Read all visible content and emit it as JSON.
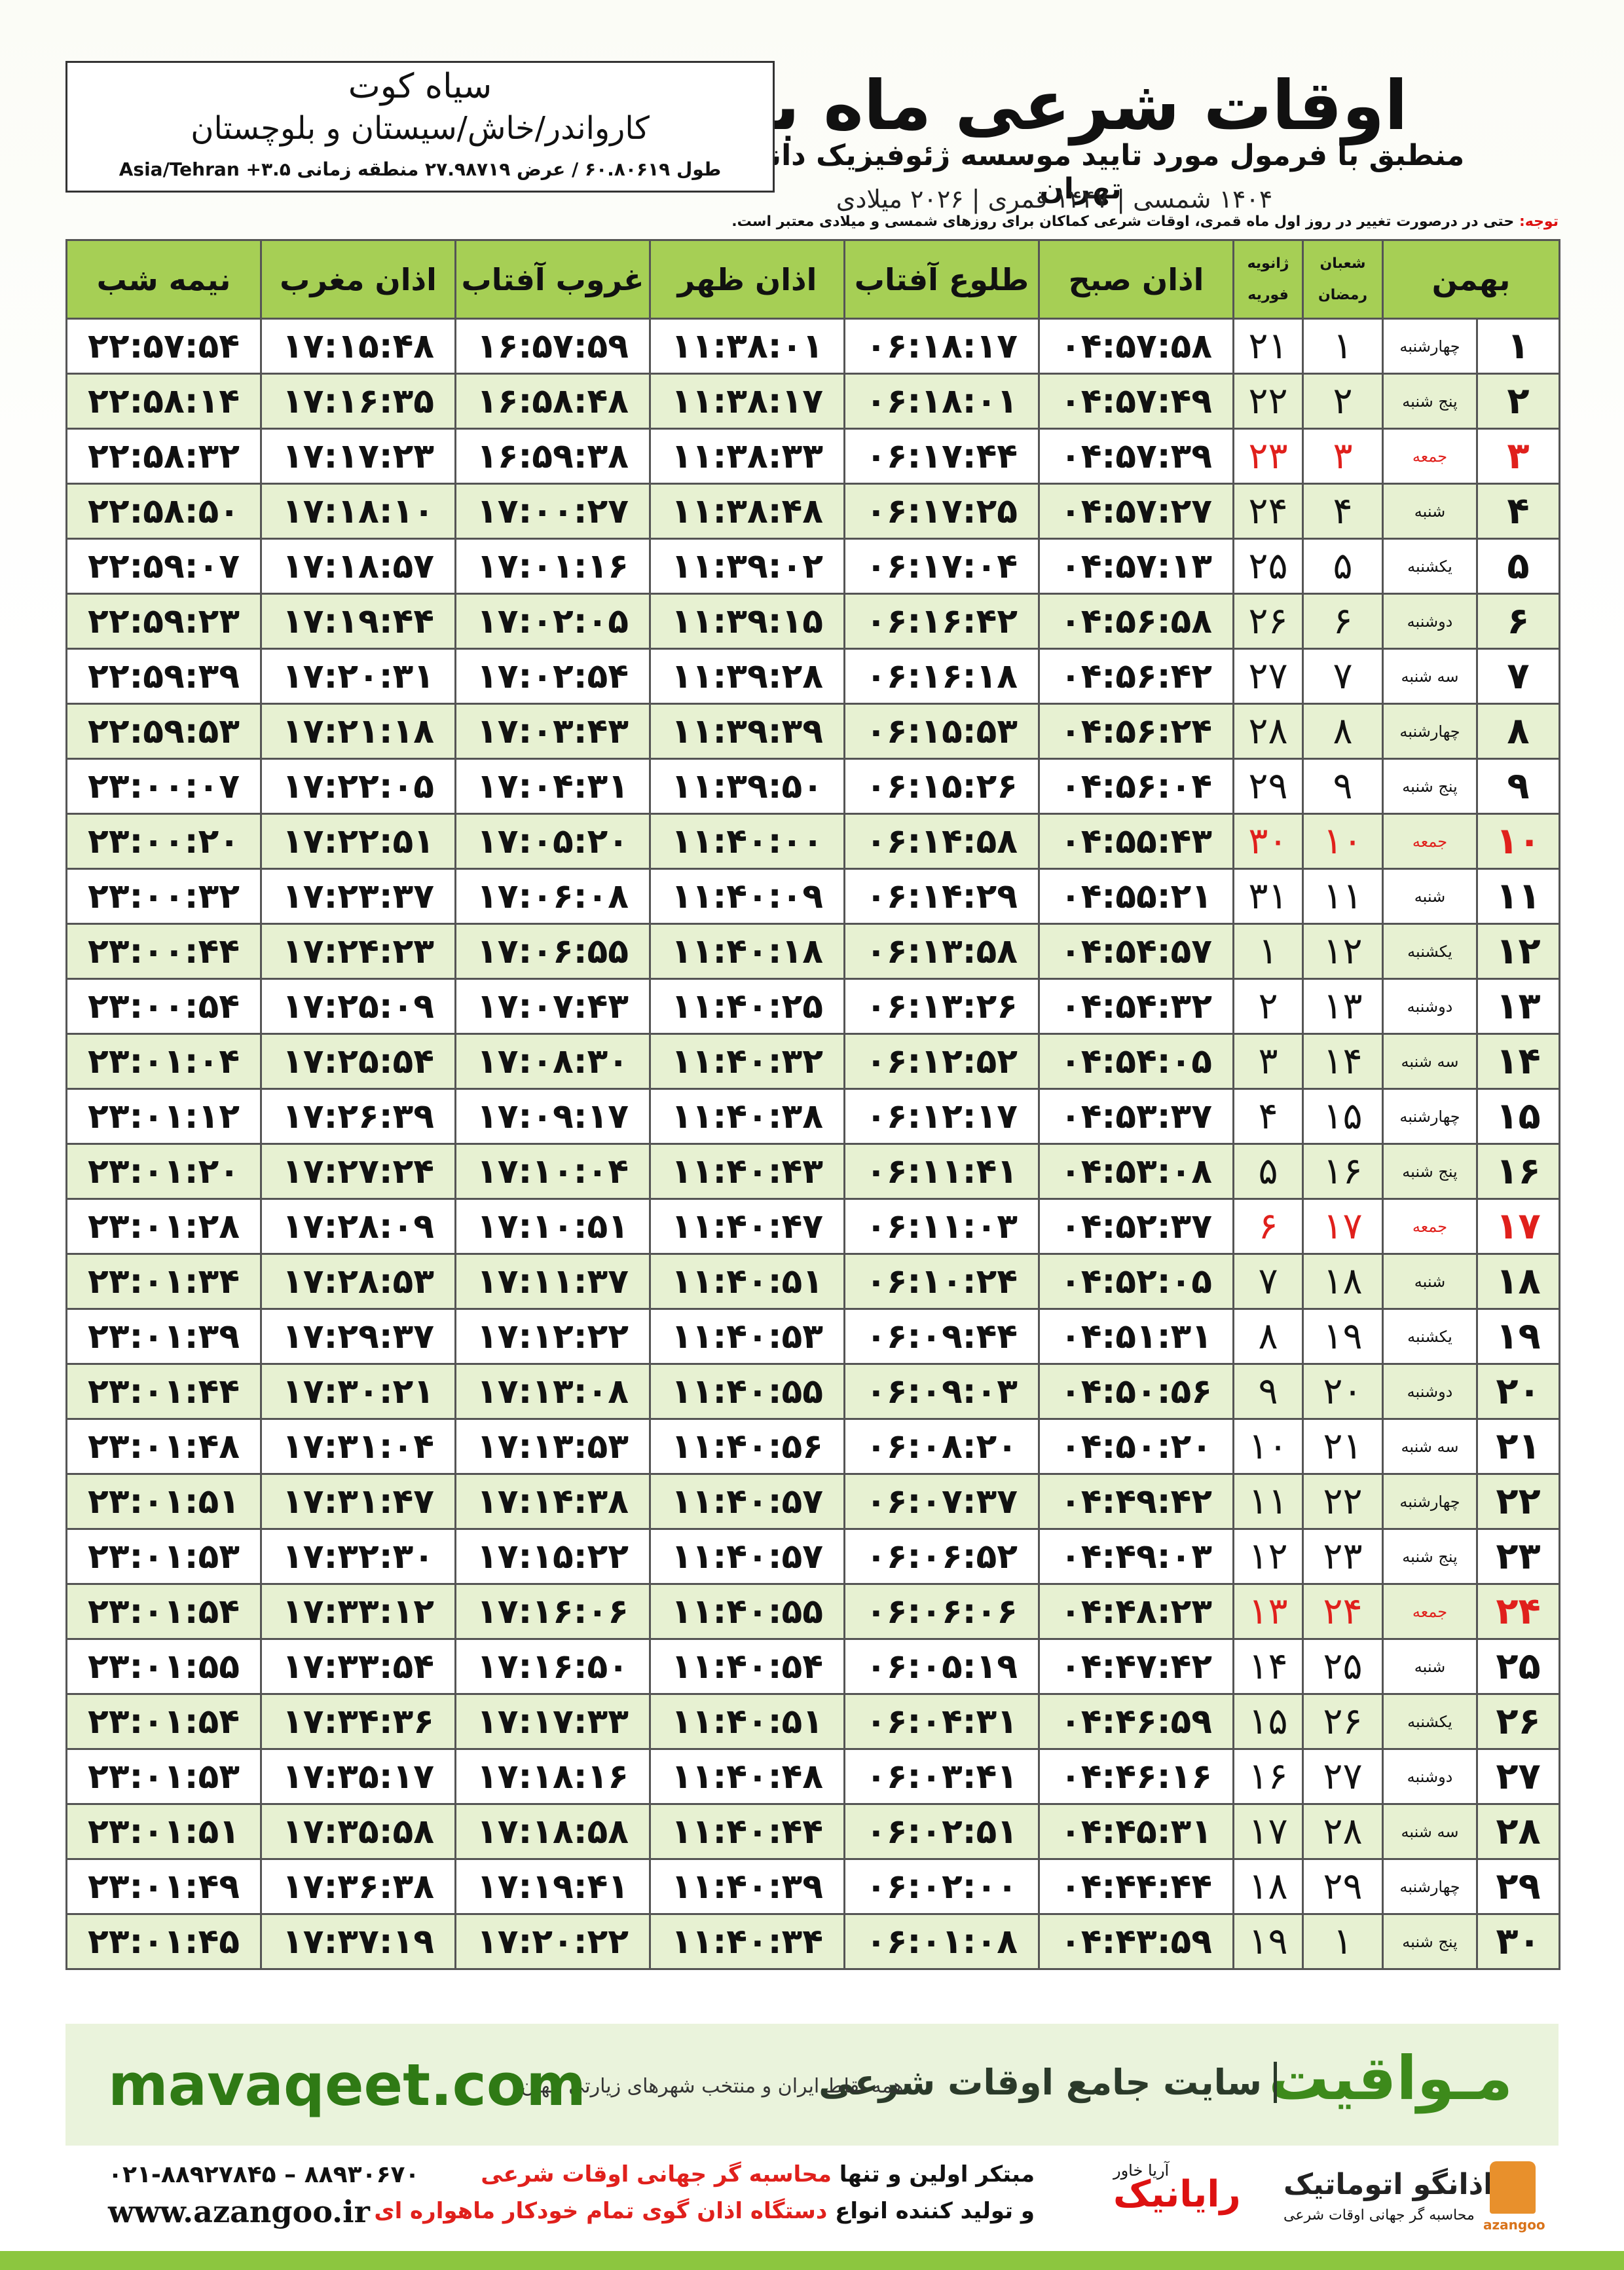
{
  "header": {
    "title": "اوقات شرعی ماه بهمن",
    "subtitle": "منطبق با فرمول مورد تایید موسسه ژئوفیزیک دانشگاه تهران",
    "dates": "۱۴۰۴ شمسی | ۱۴۴۷ قمری | ۲۰۲۶ میلادی"
  },
  "location": {
    "city": "سیاه کوت",
    "region": "کارواندر/خاش/سیستان و بلوچستان",
    "coords": "طول ۶۰.۸۰۶۱۹ / عرض ۲۷.۹۸۷۱۹ منطقه زمانی ۳.۵+ Asia/Tehran"
  },
  "note": {
    "label": "توجه:",
    "text": "حتی در درصورت تغییر در روز اول ماه قمری، اوقات شرعی کماکان برای روزهای شمسی و میلادی معتبر است."
  },
  "table": {
    "headers": {
      "month": "بهمن",
      "hijri": [
        "شعبان",
        "رمضان"
      ],
      "gregorian": [
        "ژانویه",
        "فوریه"
      ],
      "times": [
        "اذان صبح",
        "طلوع آفتاب",
        "اذان ظهر",
        "غروب آفتاب",
        "اذان مغرب",
        "نیمه شب"
      ]
    },
    "rows": [
      [
        "۱",
        "چهارشنبه",
        "۱",
        "۲۱",
        "۰۴:۵۷:۵۸",
        "۰۶:۱۸:۱۷",
        "۱۱:۳۸:۰۱",
        "۱۶:۵۷:۵۹",
        "۱۷:۱۵:۴۸",
        "۲۲:۵۷:۵۴"
      ],
      [
        "۲",
        "پنج شنبه",
        "۲",
        "۲۲",
        "۰۴:۵۷:۴۹",
        "۰۶:۱۸:۰۱",
        "۱۱:۳۸:۱۷",
        "۱۶:۵۸:۴۸",
        "۱۷:۱۶:۳۵",
        "۲۲:۵۸:۱۴"
      ],
      [
        "۳",
        "جمعه",
        "۳",
        "۲۳",
        "۰۴:۵۷:۳۹",
        "۰۶:۱۷:۴۴",
        "۱۱:۳۸:۳۳",
        "۱۶:۵۹:۳۸",
        "۱۷:۱۷:۲۳",
        "۲۲:۵۸:۳۲"
      ],
      [
        "۴",
        "شنبه",
        "۴",
        "۲۴",
        "۰۴:۵۷:۲۷",
        "۰۶:۱۷:۲۵",
        "۱۱:۳۸:۴۸",
        "۱۷:۰۰:۲۷",
        "۱۷:۱۸:۱۰",
        "۲۲:۵۸:۵۰"
      ],
      [
        "۵",
        "یکشنبه",
        "۵",
        "۲۵",
        "۰۴:۵۷:۱۳",
        "۰۶:۱۷:۰۴",
        "۱۱:۳۹:۰۲",
        "۱۷:۰۱:۱۶",
        "۱۷:۱۸:۵۷",
        "۲۲:۵۹:۰۷"
      ],
      [
        "۶",
        "دوشنبه",
        "۶",
        "۲۶",
        "۰۴:۵۶:۵۸",
        "۰۶:۱۶:۴۲",
        "۱۱:۳۹:۱۵",
        "۱۷:۰۲:۰۵",
        "۱۷:۱۹:۴۴",
        "۲۲:۵۹:۲۳"
      ],
      [
        "۷",
        "سه شنبه",
        "۷",
        "۲۷",
        "۰۴:۵۶:۴۲",
        "۰۶:۱۶:۱۸",
        "۱۱:۳۹:۲۸",
        "۱۷:۰۲:۵۴",
        "۱۷:۲۰:۳۱",
        "۲۲:۵۹:۳۹"
      ],
      [
        "۸",
        "چهارشنبه",
        "۸",
        "۲۸",
        "۰۴:۵۶:۲۴",
        "۰۶:۱۵:۵۳",
        "۱۱:۳۹:۳۹",
        "۱۷:۰۳:۴۳",
        "۱۷:۲۱:۱۸",
        "۲۲:۵۹:۵۳"
      ],
      [
        "۹",
        "پنج شنبه",
        "۹",
        "۲۹",
        "۰۴:۵۶:۰۴",
        "۰۶:۱۵:۲۶",
        "۱۱:۳۹:۵۰",
        "۱۷:۰۴:۳۱",
        "۱۷:۲۲:۰۵",
        "۲۳:۰۰:۰۷"
      ],
      [
        "۱۰",
        "جمعه",
        "۱۰",
        "۳۰",
        "۰۴:۵۵:۴۳",
        "۰۶:۱۴:۵۸",
        "۱۱:۴۰:۰۰",
        "۱۷:۰۵:۲۰",
        "۱۷:۲۲:۵۱",
        "۲۳:۰۰:۲۰"
      ],
      [
        "۱۱",
        "شنبه",
        "۱۱",
        "۳۱",
        "۰۴:۵۵:۲۱",
        "۰۶:۱۴:۲۹",
        "۱۱:۴۰:۰۹",
        "۱۷:۰۶:۰۸",
        "۱۷:۲۳:۳۷",
        "۲۳:۰۰:۳۲"
      ],
      [
        "۱۲",
        "یکشنبه",
        "۱۲",
        "۱",
        "۰۴:۵۴:۵۷",
        "۰۶:۱۳:۵۸",
        "۱۱:۴۰:۱۸",
        "۱۷:۰۶:۵۵",
        "۱۷:۲۴:۲۳",
        "۲۳:۰۰:۴۴"
      ],
      [
        "۱۳",
        "دوشنبه",
        "۱۳",
        "۲",
        "۰۴:۵۴:۳۲",
        "۰۶:۱۳:۲۶",
        "۱۱:۴۰:۲۵",
        "۱۷:۰۷:۴۳",
        "۱۷:۲۵:۰۹",
        "۲۳:۰۰:۵۴"
      ],
      [
        "۱۴",
        "سه شنبه",
        "۱۴",
        "۳",
        "۰۴:۵۴:۰۵",
        "۰۶:۱۲:۵۲",
        "۱۱:۴۰:۳۲",
        "۱۷:۰۸:۳۰",
        "۱۷:۲۵:۵۴",
        "۲۳:۰۱:۰۴"
      ],
      [
        "۱۵",
        "چهارشنبه",
        "۱۵",
        "۴",
        "۰۴:۵۳:۳۷",
        "۰۶:۱۲:۱۷",
        "۱۱:۴۰:۳۸",
        "۱۷:۰۹:۱۷",
        "۱۷:۲۶:۳۹",
        "۲۳:۰۱:۱۲"
      ],
      [
        "۱۶",
        "پنج شنبه",
        "۱۶",
        "۵",
        "۰۴:۵۳:۰۸",
        "۰۶:۱۱:۴۱",
        "۱۱:۴۰:۴۳",
        "۱۷:۱۰:۰۴",
        "۱۷:۲۷:۲۴",
        "۲۳:۰۱:۲۰"
      ],
      [
        "۱۷",
        "جمعه",
        "۱۷",
        "۶",
        "۰۴:۵۲:۳۷",
        "۰۶:۱۱:۰۳",
        "۱۱:۴۰:۴۷",
        "۱۷:۱۰:۵۱",
        "۱۷:۲۸:۰۹",
        "۲۳:۰۱:۲۸"
      ],
      [
        "۱۸",
        "شنبه",
        "۱۸",
        "۷",
        "۰۴:۵۲:۰۵",
        "۰۶:۱۰:۲۴",
        "۱۱:۴۰:۵۱",
        "۱۷:۱۱:۳۷",
        "۱۷:۲۸:۵۳",
        "۲۳:۰۱:۳۴"
      ],
      [
        "۱۹",
        "یکشنبه",
        "۱۹",
        "۸",
        "۰۴:۵۱:۳۱",
        "۰۶:۰۹:۴۴",
        "۱۱:۴۰:۵۳",
        "۱۷:۱۲:۲۲",
        "۱۷:۲۹:۳۷",
        "۲۳:۰۱:۳۹"
      ],
      [
        "۲۰",
        "دوشنبه",
        "۲۰",
        "۹",
        "۰۴:۵۰:۵۶",
        "۰۶:۰۹:۰۳",
        "۱۱:۴۰:۵۵",
        "۱۷:۱۳:۰۸",
        "۱۷:۳۰:۲۱",
        "۲۳:۰۱:۴۴"
      ],
      [
        "۲۱",
        "سه شنبه",
        "۲۱",
        "۱۰",
        "۰۴:۵۰:۲۰",
        "۰۶:۰۸:۲۰",
        "۱۱:۴۰:۵۶",
        "۱۷:۱۳:۵۳",
        "۱۷:۳۱:۰۴",
        "۲۳:۰۱:۴۸"
      ],
      [
        "۲۲",
        "چهارشنبه",
        "۲۲",
        "۱۱",
        "۰۴:۴۹:۴۲",
        "۰۶:۰۷:۳۷",
        "۱۱:۴۰:۵۷",
        "۱۷:۱۴:۳۸",
        "۱۷:۳۱:۴۷",
        "۲۳:۰۱:۵۱"
      ],
      [
        "۲۳",
        "پنج شنبه",
        "۲۳",
        "۱۲",
        "۰۴:۴۹:۰۳",
        "۰۶:۰۶:۵۲",
        "۱۱:۴۰:۵۷",
        "۱۷:۱۵:۲۲",
        "۱۷:۳۲:۳۰",
        "۲۳:۰۱:۵۳"
      ],
      [
        "۲۴",
        "جمعه",
        "۲۴",
        "۱۳",
        "۰۴:۴۸:۲۳",
        "۰۶:۰۶:۰۶",
        "۱۱:۴۰:۵۵",
        "۱۷:۱۶:۰۶",
        "۱۷:۳۳:۱۲",
        "۲۳:۰۱:۵۴"
      ],
      [
        "۲۵",
        "شنبه",
        "۲۵",
        "۱۴",
        "۰۴:۴۷:۴۲",
        "۰۶:۰۵:۱۹",
        "۱۱:۴۰:۵۴",
        "۱۷:۱۶:۵۰",
        "۱۷:۳۳:۵۴",
        "۲۳:۰۱:۵۵"
      ],
      [
        "۲۶",
        "یکشنبه",
        "۲۶",
        "۱۵",
        "۰۴:۴۶:۵۹",
        "۰۶:۰۴:۳۱",
        "۱۱:۴۰:۵۱",
        "۱۷:۱۷:۳۳",
        "۱۷:۳۴:۳۶",
        "۲۳:۰۱:۵۴"
      ],
      [
        "۲۷",
        "دوشنبه",
        "۲۷",
        "۱۶",
        "۰۴:۴۶:۱۶",
        "۰۶:۰۳:۴۱",
        "۱۱:۴۰:۴۸",
        "۱۷:۱۸:۱۶",
        "۱۷:۳۵:۱۷",
        "۲۳:۰۱:۵۳"
      ],
      [
        "۲۸",
        "سه شنبه",
        "۲۸",
        "۱۷",
        "۰۴:۴۵:۳۱",
        "۰۶:۰۲:۵۱",
        "۱۱:۴۰:۴۴",
        "۱۷:۱۸:۵۸",
        "۱۷:۳۵:۵۸",
        "۲۳:۰۱:۵۱"
      ],
      [
        "۲۹",
        "چهارشنبه",
        "۲۹",
        "۱۸",
        "۰۴:۴۴:۴۴",
        "۰۶:۰۲:۰۰",
        "۱۱:۴۰:۳۹",
        "۱۷:۱۹:۴۱",
        "۱۷:۳۶:۳۸",
        "۲۳:۰۱:۴۹"
      ],
      [
        "۳۰",
        "پنج شنبه",
        "۱",
        "۱۹",
        "۰۴:۴۳:۵۹",
        "۰۶:۰۱:۰۸",
        "۱۱:۴۰:۳۴",
        "۱۷:۲۰:۲۲",
        "۱۷:۳۷:۱۹",
        "۲۳:۰۱:۴۵"
      ]
    ]
  },
  "banner": {
    "brand": "مـواقیت",
    "tagline": "سایت جامع اوقات شرعی",
    "scope": "همه نقاط ایران و منتخب شهرهای زیارتی جهان",
    "url": "mavaqeet.com"
  },
  "footer": {
    "line1": [
      "مبتکر اولین و تنها ",
      "محاسبه گر جهانی اوقات شرعی"
    ],
    "line2": [
      "و تولید کننده انواع ",
      "دستگاه اذان گوی تمام خودکار ماهواره ای"
    ],
    "phone": "۰۲۱-۸۸۹۲۷۸۴۵ – ۸۸۹۳۰۶۷۰",
    "website": "www.azangoo.ir",
    "logo1": "رایانیک",
    "logo1_sub": "آریا خاور",
    "logo2": "اذانگو اتوماتیک",
    "logo2_sub": "محاسبه گر جهانی اوقات شرعی",
    "logo2_en": "azangoo"
  }
}
